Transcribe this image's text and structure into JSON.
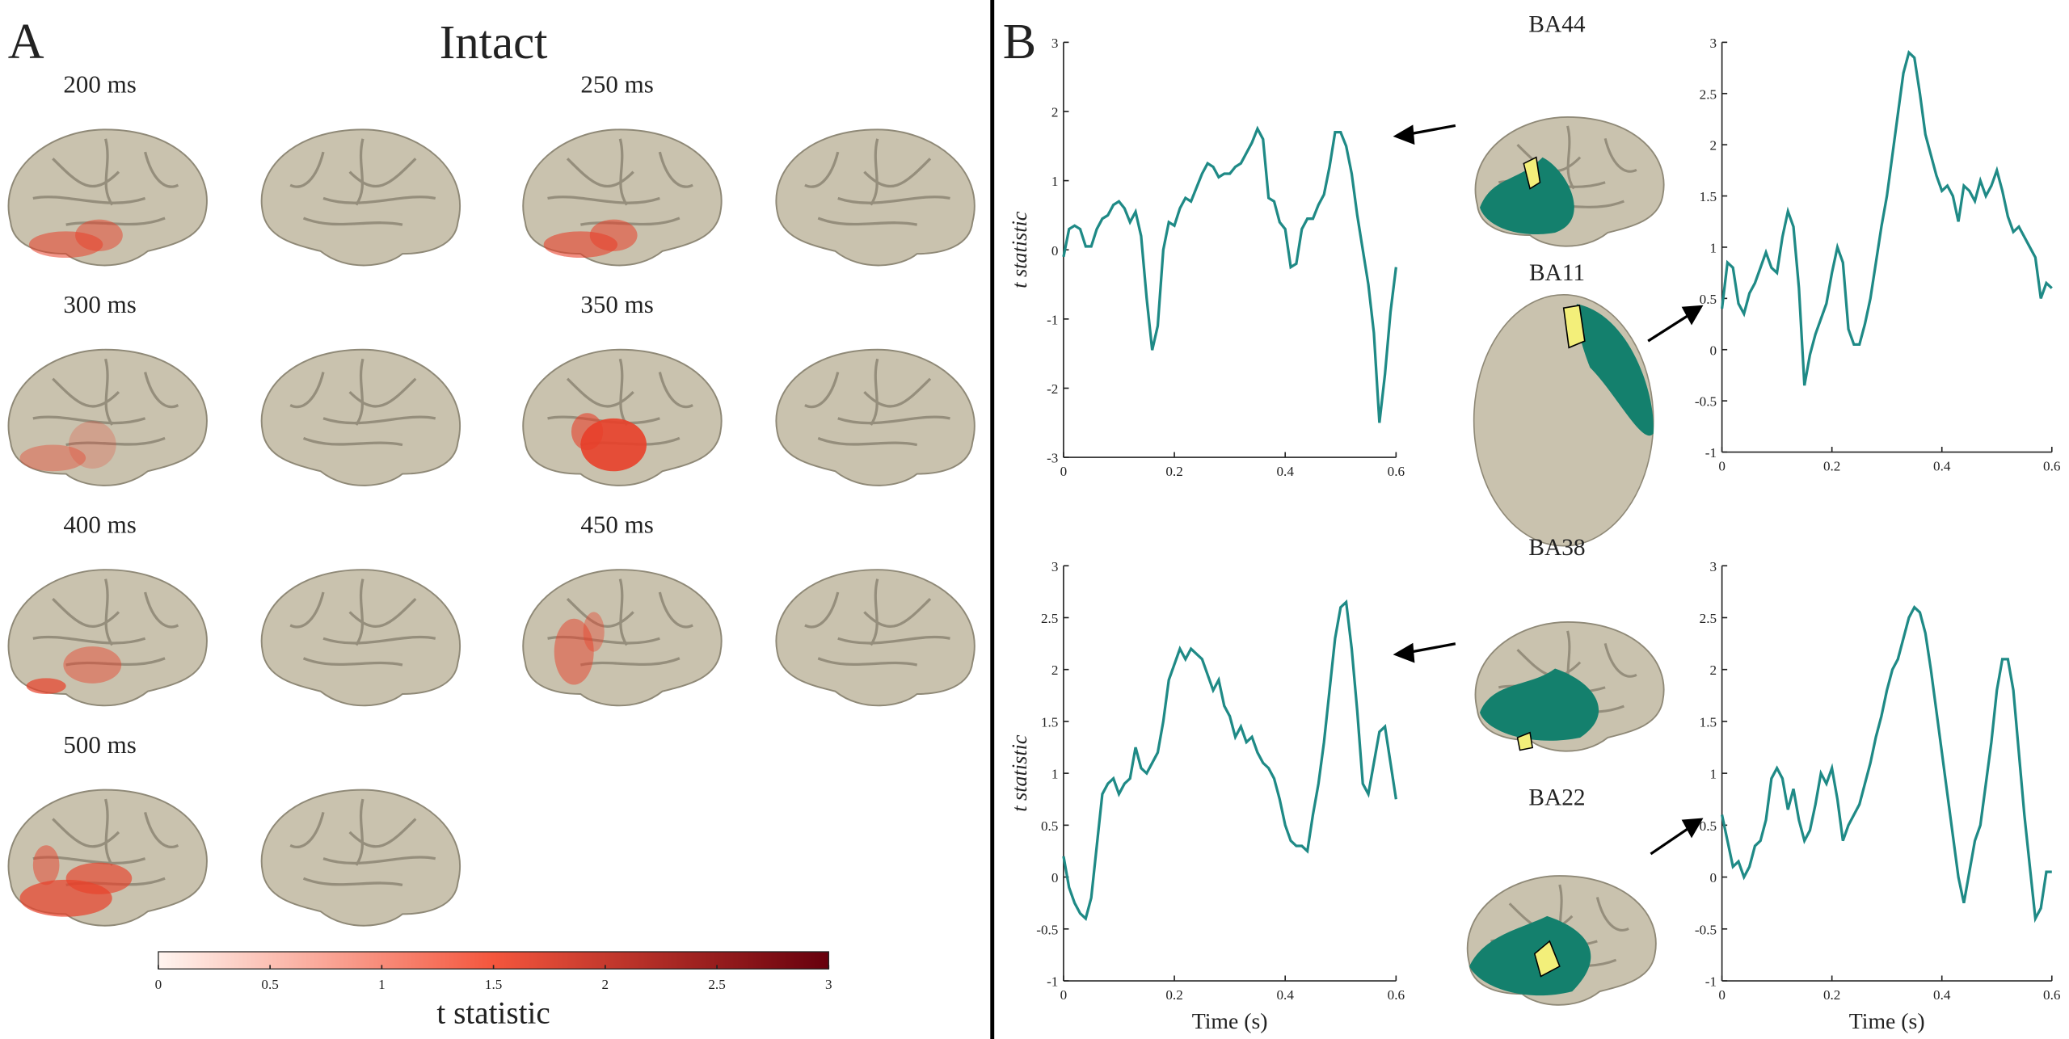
{
  "panel_a": {
    "label": "A",
    "title": "Intact",
    "time_labels": [
      "200 ms",
      "250 ms",
      "300 ms",
      "350 ms",
      "400 ms",
      "450 ms",
      "500 ms"
    ]
  },
  "panel_b": {
    "label": "B"
  },
  "chart_data": [
    {
      "type": "line",
      "title": "BA44",
      "ylabel": "t statistic",
      "color": "#1f8a86",
      "x": [
        0,
        0.01,
        0.02,
        0.03,
        0.04,
        0.05,
        0.06,
        0.07,
        0.08,
        0.09,
        0.1,
        0.11,
        0.12,
        0.13,
        0.14,
        0.15,
        0.16,
        0.17,
        0.18,
        0.19,
        0.2,
        0.21,
        0.22,
        0.23,
        0.24,
        0.25,
        0.26,
        0.27,
        0.28,
        0.29,
        0.3,
        0.31,
        0.32,
        0.33,
        0.34,
        0.35,
        0.36,
        0.37,
        0.38,
        0.39,
        0.4,
        0.41,
        0.42,
        0.43,
        0.44,
        0.45,
        0.46,
        0.47,
        0.48,
        0.49,
        0.5,
        0.51,
        0.52,
        0.53,
        0.54,
        0.55,
        0.56,
        0.57,
        0.58,
        0.59,
        0.6
      ],
      "values": [
        -0.1,
        0.3,
        0.35,
        0.3,
        0.05,
        0.05,
        0.3,
        0.45,
        0.5,
        0.65,
        0.7,
        0.6,
        0.4,
        0.55,
        0.2,
        -0.7,
        -1.45,
        -1.1,
        0.0,
        0.4,
        0.35,
        0.6,
        0.75,
        0.7,
        0.9,
        1.1,
        1.25,
        1.2,
        1.05,
        1.1,
        1.1,
        1.2,
        1.25,
        1.4,
        1.55,
        1.75,
        1.6,
        0.75,
        0.7,
        0.4,
        0.3,
        -0.25,
        -0.2,
        0.3,
        0.45,
        0.45,
        0.65,
        0.8,
        1.2,
        1.7,
        1.7,
        1.5,
        1.1,
        0.5,
        0.0,
        -0.5,
        -1.2,
        -2.5,
        -1.8,
        -0.9,
        -0.25
      ],
      "xlim": [
        0,
        0.6
      ],
      "xticks": [
        0,
        0.2,
        0.4,
        0.6
      ],
      "ylim": [
        -3,
        3
      ],
      "yticks": [
        -3,
        -2,
        -1,
        0,
        1,
        2,
        3
      ]
    },
    {
      "type": "line",
      "title": "BA11",
      "color": "#1f8a86",
      "x": [
        0,
        0.01,
        0.02,
        0.03,
        0.04,
        0.05,
        0.06,
        0.07,
        0.08,
        0.09,
        0.1,
        0.11,
        0.12,
        0.13,
        0.14,
        0.15,
        0.16,
        0.17,
        0.18,
        0.19,
        0.2,
        0.21,
        0.22,
        0.23,
        0.24,
        0.25,
        0.26,
        0.27,
        0.28,
        0.29,
        0.3,
        0.31,
        0.32,
        0.33,
        0.34,
        0.35,
        0.36,
        0.37,
        0.38,
        0.39,
        0.4,
        0.41,
        0.42,
        0.43,
        0.44,
        0.45,
        0.46,
        0.47,
        0.48,
        0.49,
        0.5,
        0.51,
        0.52,
        0.53,
        0.54,
        0.55,
        0.56,
        0.57,
        0.58,
        0.59,
        0.6
      ],
      "values": [
        0.4,
        0.85,
        0.8,
        0.45,
        0.35,
        0.55,
        0.65,
        0.8,
        0.95,
        0.8,
        0.75,
        1.1,
        1.35,
        1.2,
        0.6,
        -0.35,
        -0.05,
        0.15,
        0.3,
        0.45,
        0.75,
        1.0,
        0.85,
        0.2,
        0.05,
        0.05,
        0.25,
        0.5,
        0.85,
        1.2,
        1.5,
        1.9,
        2.3,
        2.7,
        2.9,
        2.85,
        2.5,
        2.1,
        1.9,
        1.7,
        1.55,
        1.6,
        1.5,
        1.25,
        1.6,
        1.55,
        1.45,
        1.65,
        1.5,
        1.6,
        1.75,
        1.55,
        1.3,
        1.15,
        1.2,
        1.1,
        1.0,
        0.9,
        0.5,
        0.65,
        0.6
      ],
      "xlim": [
        0,
        0.6
      ],
      "xticks": [
        0,
        0.2,
        0.4,
        0.6
      ],
      "ylim": [
        -1,
        3
      ],
      "yticks": [
        -1,
        -0.5,
        0,
        0.5,
        1,
        1.5,
        2,
        2.5,
        3
      ]
    },
    {
      "type": "line",
      "title": "BA38",
      "ylabel": "t statistic",
      "xlabel": "Time (s)",
      "color": "#1f8a86",
      "x": [
        0,
        0.01,
        0.02,
        0.03,
        0.04,
        0.05,
        0.06,
        0.07,
        0.08,
        0.09,
        0.1,
        0.11,
        0.12,
        0.13,
        0.14,
        0.15,
        0.16,
        0.17,
        0.18,
        0.19,
        0.2,
        0.21,
        0.22,
        0.23,
        0.24,
        0.25,
        0.26,
        0.27,
        0.28,
        0.29,
        0.3,
        0.31,
        0.32,
        0.33,
        0.34,
        0.35,
        0.36,
        0.37,
        0.38,
        0.39,
        0.4,
        0.41,
        0.42,
        0.43,
        0.44,
        0.45,
        0.46,
        0.47,
        0.48,
        0.49,
        0.5,
        0.51,
        0.52,
        0.53,
        0.54,
        0.55,
        0.56,
        0.57,
        0.58,
        0.59,
        0.6
      ],
      "values": [
        0.2,
        -0.1,
        -0.25,
        -0.35,
        -0.4,
        -0.2,
        0.3,
        0.8,
        0.9,
        0.95,
        0.8,
        0.9,
        0.95,
        1.25,
        1.05,
        1.0,
        1.1,
        1.2,
        1.5,
        1.9,
        2.05,
        2.2,
        2.1,
        2.2,
        2.15,
        2.1,
        1.95,
        1.8,
        1.9,
        1.65,
        1.55,
        1.35,
        1.45,
        1.3,
        1.35,
        1.2,
        1.1,
        1.05,
        0.95,
        0.75,
        0.5,
        0.35,
        0.3,
        0.3,
        0.25,
        0.6,
        0.9,
        1.3,
        1.8,
        2.3,
        2.6,
        2.65,
        2.2,
        1.6,
        0.9,
        0.8,
        1.1,
        1.4,
        1.45,
        1.1,
        0.75
      ],
      "xlim": [
        0,
        0.6
      ],
      "xticks": [
        0,
        0.2,
        0.4,
        0.6
      ],
      "ylim": [
        -1,
        3
      ],
      "yticks": [
        -1,
        -0.5,
        0,
        0.5,
        1,
        1.5,
        2,
        2.5,
        3
      ]
    },
    {
      "type": "line",
      "title": "BA22",
      "xlabel": "Time (s)",
      "color": "#1f8a86",
      "x": [
        0,
        0.01,
        0.02,
        0.03,
        0.04,
        0.05,
        0.06,
        0.07,
        0.08,
        0.09,
        0.1,
        0.11,
        0.12,
        0.13,
        0.14,
        0.15,
        0.16,
        0.17,
        0.18,
        0.19,
        0.2,
        0.21,
        0.22,
        0.23,
        0.24,
        0.25,
        0.26,
        0.27,
        0.28,
        0.29,
        0.3,
        0.31,
        0.32,
        0.33,
        0.34,
        0.35,
        0.36,
        0.37,
        0.38,
        0.39,
        0.4,
        0.41,
        0.42,
        0.43,
        0.44,
        0.45,
        0.46,
        0.47,
        0.48,
        0.49,
        0.5,
        0.51,
        0.52,
        0.53,
        0.54,
        0.55,
        0.56,
        0.57,
        0.58,
        0.59,
        0.6
      ],
      "values": [
        0.6,
        0.35,
        0.1,
        0.15,
        0.0,
        0.1,
        0.3,
        0.35,
        0.55,
        0.95,
        1.05,
        0.95,
        0.65,
        0.85,
        0.55,
        0.35,
        0.45,
        0.7,
        1.0,
        0.9,
        1.05,
        0.75,
        0.35,
        0.5,
        0.6,
        0.7,
        0.9,
        1.1,
        1.35,
        1.55,
        1.8,
        2.0,
        2.1,
        2.3,
        2.5,
        2.6,
        2.55,
        2.35,
        2.0,
        1.6,
        1.2,
        0.8,
        0.4,
        0.0,
        -0.25,
        0.05,
        0.35,
        0.5,
        0.9,
        1.3,
        1.8,
        2.1,
        2.1,
        1.8,
        1.2,
        0.6,
        0.1,
        -0.4,
        -0.3,
        0.05,
        0.05
      ],
      "xlim": [
        0,
        0.6
      ],
      "xticks": [
        0,
        0.2,
        0.4,
        0.6
      ],
      "ylim": [
        -1,
        3
      ],
      "yticks": [
        -1,
        -0.5,
        0,
        0.5,
        1,
        1.5,
        2,
        2.5,
        3
      ]
    },
    {
      "type": "colorbar",
      "xlabel": "t statistic",
      "colormap": [
        "#fff5f0",
        "#f4563d",
        "#67000d"
      ],
      "xlim": [
        0,
        3
      ],
      "xticks": [
        0,
        0.5,
        1,
        1.5,
        2,
        2.5,
        3
      ]
    }
  ]
}
